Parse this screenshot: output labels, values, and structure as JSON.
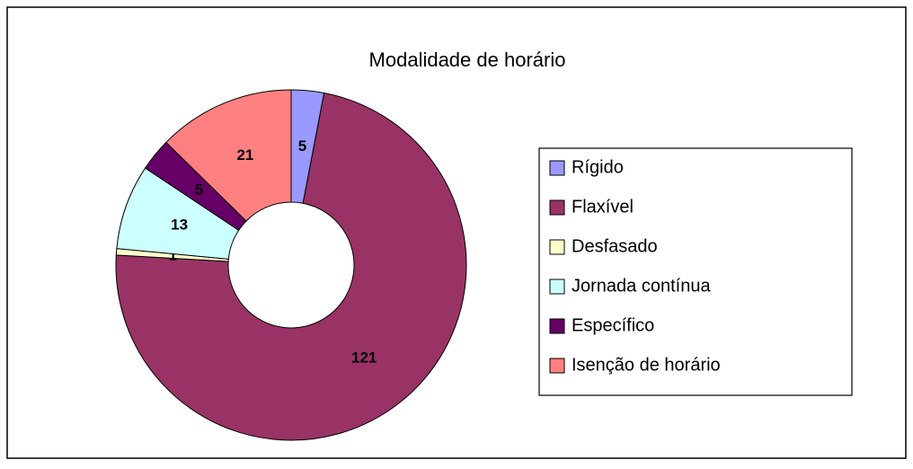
{
  "chart_data": {
    "type": "doughnut",
    "title": "Modalidade de horário",
    "categories": [
      "Rígido",
      "Flaxível",
      "Desfasado",
      "Jornada contínua",
      "Específico",
      "Isenção de horário"
    ],
    "values": [
      5,
      121,
      1,
      13,
      5,
      21
    ],
    "colors": [
      "#9999ff",
      "#993366",
      "#ffffcc",
      "#ccffff",
      "#660066",
      "#ff8080"
    ],
    "legend": "right"
  }
}
